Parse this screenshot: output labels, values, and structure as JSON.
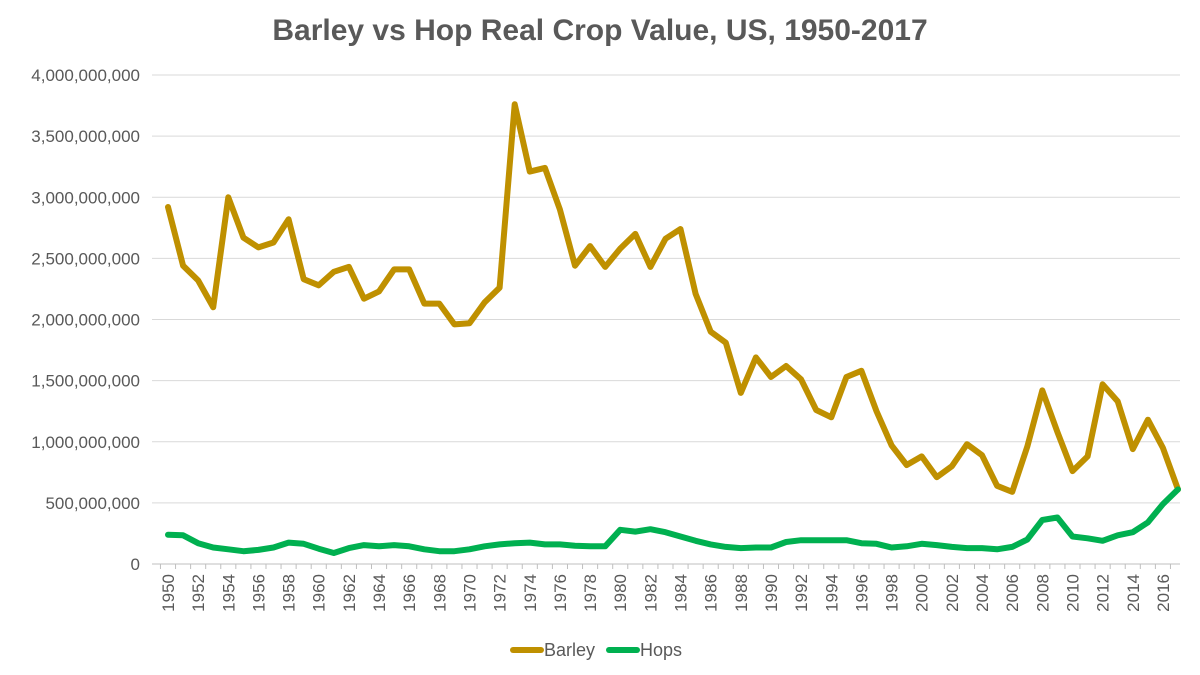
{
  "chart_data": {
    "type": "line",
    "title": "Barley vs Hop Real Crop Value, US, 1950-2017",
    "xlabel": "",
    "ylabel": "",
    "ylim": [
      0,
      4000000000
    ],
    "yticks": [
      0,
      500000000,
      1000000000,
      1500000000,
      2000000000,
      2500000000,
      3000000000,
      3500000000,
      4000000000
    ],
    "ytick_labels": [
      "0",
      "500,000,000",
      "1,000,000,000",
      "1,500,000,000",
      "2,000,000,000",
      "2,500,000,000",
      "3,000,000,000",
      "3,500,000,000",
      "4,000,000,000"
    ],
    "xtick_labels": [
      "1950",
      "1952",
      "1954",
      "1956",
      "1958",
      "1960",
      "1962",
      "1964",
      "1966",
      "1968",
      "1970",
      "1972",
      "1974",
      "1976",
      "1978",
      "1980",
      "1982",
      "1984",
      "1986",
      "1988",
      "1990",
      "1992",
      "1994",
      "1996",
      "1998",
      "2000",
      "2002",
      "2004",
      "2006",
      "2008",
      "2010",
      "2012",
      "2014",
      "2016"
    ],
    "x": [
      1950,
      1951,
      1952,
      1953,
      1954,
      1955,
      1956,
      1957,
      1958,
      1959,
      1960,
      1961,
      1962,
      1963,
      1964,
      1965,
      1966,
      1967,
      1968,
      1969,
      1970,
      1971,
      1972,
      1973,
      1974,
      1975,
      1976,
      1977,
      1978,
      1979,
      1980,
      1981,
      1982,
      1983,
      1984,
      1985,
      1986,
      1987,
      1988,
      1989,
      1990,
      1991,
      1992,
      1993,
      1994,
      1995,
      1996,
      1997,
      1998,
      1999,
      2000,
      2001,
      2002,
      2003,
      2004,
      2005,
      2006,
      2007,
      2008,
      2009,
      2010,
      2011,
      2012,
      2013,
      2014,
      2015,
      2016,
      2017
    ],
    "grid": true,
    "legend_position": "bottom",
    "series": [
      {
        "name": "Barley",
        "color": "#BF9000",
        "values": [
          2920000000,
          2440000000,
          2320000000,
          2100000000,
          3000000000,
          2670000000,
          2590000000,
          2630000000,
          2820000000,
          2330000000,
          2280000000,
          2390000000,
          2430000000,
          2170000000,
          2230000000,
          2410000000,
          2410000000,
          2130000000,
          2130000000,
          1960000000,
          1970000000,
          2140000000,
          2260000000,
          3760000000,
          3210000000,
          3240000000,
          2900000000,
          2440000000,
          2600000000,
          2430000000,
          2580000000,
          2700000000,
          2430000000,
          2660000000,
          2740000000,
          2210000000,
          1900000000,
          1810000000,
          1400000000,
          1690000000,
          1530000000,
          1620000000,
          1510000000,
          1260000000,
          1200000000,
          1530000000,
          1580000000,
          1250000000,
          970000000,
          810000000,
          880000000,
          710000000,
          800000000,
          980000000,
          890000000,
          640000000,
          590000000,
          960000000,
          1420000000,
          1080000000,
          760000000,
          880000000,
          1470000000,
          1330000000,
          940000000,
          1180000000,
          950000000,
          610000000
        ]
      },
      {
        "name": "Hops",
        "color": "#00B050",
        "values": [
          240000000,
          235000000,
          170000000,
          135000000,
          120000000,
          105000000,
          115000000,
          135000000,
          175000000,
          165000000,
          125000000,
          90000000,
          130000000,
          155000000,
          145000000,
          155000000,
          145000000,
          120000000,
          105000000,
          105000000,
          120000000,
          145000000,
          160000000,
          170000000,
          175000000,
          160000000,
          160000000,
          150000000,
          145000000,
          145000000,
          280000000,
          265000000,
          285000000,
          260000000,
          225000000,
          190000000,
          160000000,
          140000000,
          130000000,
          135000000,
          135000000,
          180000000,
          195000000,
          195000000,
          195000000,
          195000000,
          170000000,
          165000000,
          135000000,
          145000000,
          165000000,
          155000000,
          140000000,
          130000000,
          130000000,
          120000000,
          140000000,
          200000000,
          360000000,
          380000000,
          225000000,
          210000000,
          190000000,
          235000000,
          260000000,
          340000000,
          490000000,
          610000000
        ]
      }
    ]
  }
}
